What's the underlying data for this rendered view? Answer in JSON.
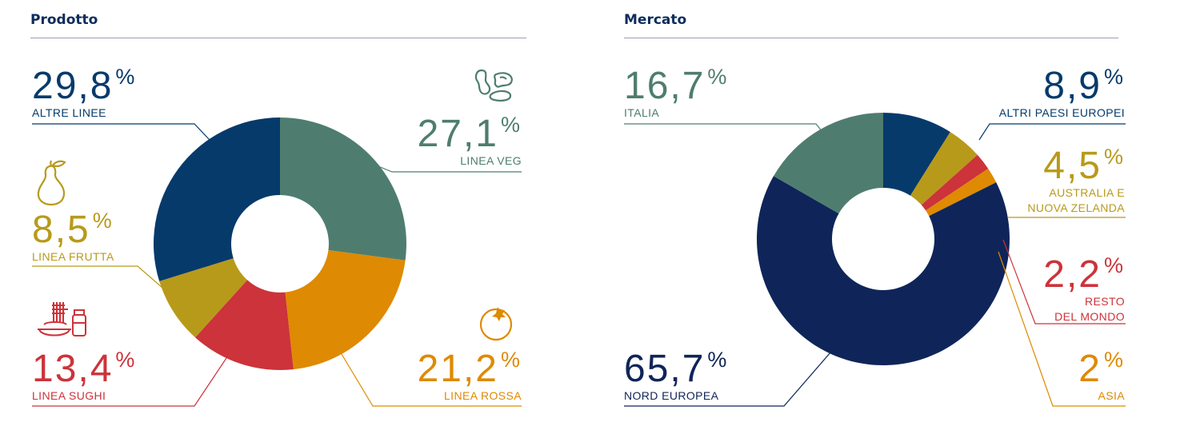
{
  "colors": {
    "navy": "#063a6b",
    "dark_navy": "#0f2559",
    "green": "#4e7d6f",
    "gold": "#b89a1a",
    "red": "#cc333a",
    "orange": "#de8a02"
  },
  "chart_data": [
    {
      "type": "pie",
      "title": "Prodotto",
      "donut": true,
      "slices": [
        {
          "label": "LINEA VEG",
          "value": 27.1,
          "value_text": "27,1",
          "color": "#4e7d6f",
          "icon": "beans-icon"
        },
        {
          "label": "LINEA ROSSA",
          "value": 21.2,
          "value_text": "21,2",
          "color": "#de8a02",
          "icon": "tomato-icon"
        },
        {
          "label": "LINEA SUGHI",
          "value": 13.4,
          "value_text": "13,4",
          "color": "#cc333a",
          "icon": "pasta-sauce-icon"
        },
        {
          "label": "LINEA FRUTTA",
          "value": 8.5,
          "value_text": "8,5",
          "color": "#b89a1a",
          "icon": "pear-icon"
        },
        {
          "label": "ALTRE LINEE",
          "value": 29.8,
          "value_text": "29,8",
          "color": "#063a6b",
          "icon": ""
        }
      ]
    },
    {
      "type": "pie",
      "title": "Mercato",
      "donut": true,
      "slices": [
        {
          "label": "ALTRI PAESI EUROPEI",
          "value": 8.9,
          "value_text": "8,9",
          "color": "#063a6b"
        },
        {
          "label": "AUSTRALIA E NUOVA ZELANDA",
          "label_lines": [
            "AUSTRALIA E",
            "NUOVA ZELANDA"
          ],
          "value": 4.5,
          "value_text": "4,5",
          "color": "#b89a1a"
        },
        {
          "label": "RESTO DEL MONDO",
          "label_lines": [
            "RESTO",
            "DEL MONDO"
          ],
          "value": 2.2,
          "value_text": "2,2",
          "color": "#cc333a"
        },
        {
          "label": "ASIA",
          "value": 2,
          "value_text": "2",
          "color": "#de8a02"
        },
        {
          "label": "NORD EUROPEA",
          "value": 65.7,
          "value_text": "65,7",
          "color": "#0f2559"
        },
        {
          "label": "ITALIA",
          "value": 16.7,
          "value_text": "16,7",
          "color": "#4e7d6f"
        }
      ]
    }
  ],
  "percent_symbol": "%"
}
